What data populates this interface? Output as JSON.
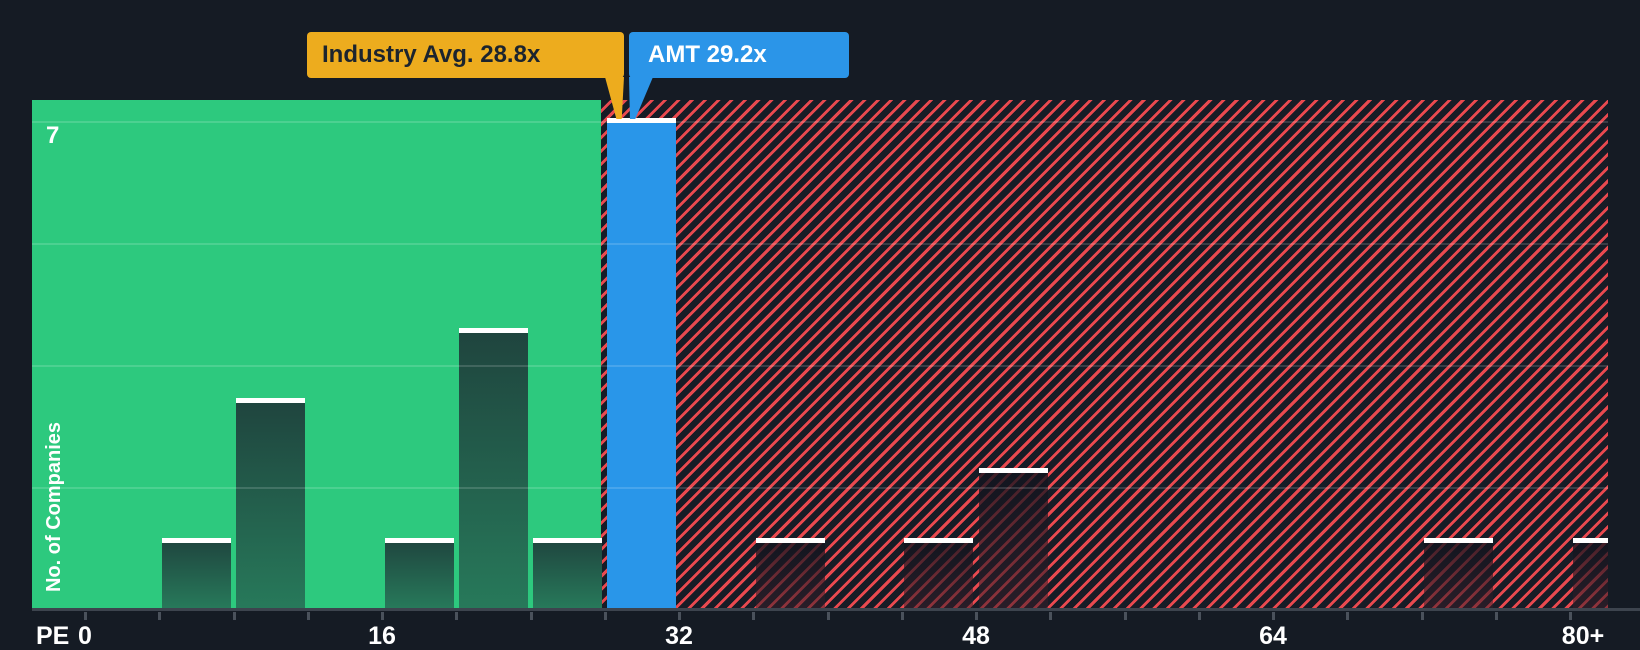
{
  "colors": {
    "page_background": "#151b24",
    "green_zone": "#2dc97e",
    "hatch_red": "#e9494f",
    "hatch_background": "#171c26",
    "company_bar_blue": "#2996e9",
    "industry_flag_yellow": "#edac1e",
    "company_flag_blue": "#2b95e8",
    "bar_gradient_top": "#1f443e",
    "bar_gradient_bottom": "#27795a",
    "bar_cap_white": "#ffffff"
  },
  "chart_data": {
    "type": "bar",
    "subtype": "histogram",
    "xlabel": "PE",
    "ylabel": "No. of Companies",
    "y_max": 7,
    "ylim": [
      0,
      7
    ],
    "x_tick_labels": [
      "0",
      "16",
      "32",
      "48",
      "64",
      "80+"
    ],
    "x_tick_step": 4,
    "x_tick_max": 80,
    "bucket_width": 4,
    "grid": "horizontal-quarter-lines",
    "legend_position": "none",
    "industry_avg": {
      "label": "Industry Avg. 28.8x",
      "value": 28.8
    },
    "company": {
      "label": "AMT 29.2x",
      "ticker": "AMT",
      "value": 29.2
    },
    "buckets": [
      {
        "range": [
          4,
          8
        ],
        "count": 1,
        "zone": "below"
      },
      {
        "range": [
          8,
          12
        ],
        "count": 3,
        "zone": "below"
      },
      {
        "range": [
          16,
          20
        ],
        "count": 1,
        "zone": "below"
      },
      {
        "range": [
          20,
          24
        ],
        "count": 4,
        "zone": "below"
      },
      {
        "range": [
          24,
          28
        ],
        "count": 1,
        "zone": "below"
      },
      {
        "range": [
          28,
          32
        ],
        "count": 7,
        "zone": "amt"
      },
      {
        "range": [
          36,
          40
        ],
        "count": 1,
        "zone": "above"
      },
      {
        "range": [
          44,
          48
        ],
        "count": 1,
        "zone": "above"
      },
      {
        "range": [
          48,
          52
        ],
        "count": 2,
        "zone": "above"
      },
      {
        "range": [
          72,
          76
        ],
        "count": 1,
        "zone": "above"
      },
      {
        "range": [
          80,
          84
        ],
        "count": 1,
        "zone": "above"
      }
    ]
  }
}
